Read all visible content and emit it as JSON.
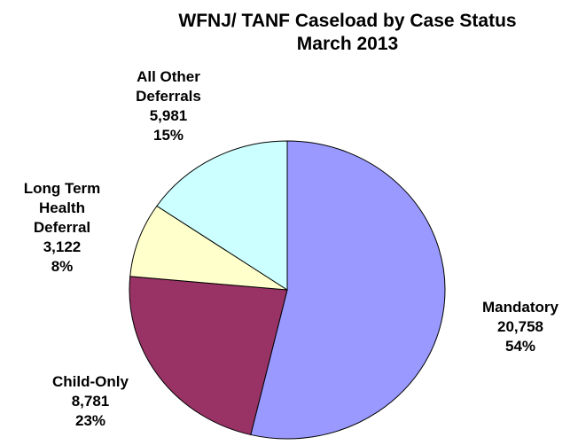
{
  "chart_data": {
    "type": "pie",
    "title": "WFNJ/ TANF Caseload by Case Status",
    "subtitle": "March 2013",
    "categories": [
      "Mandatory",
      "Child-Only",
      "Long Term Health Deferral",
      "All Other Deferrals"
    ],
    "values": [
      20758,
      8781,
      3122,
      5981
    ],
    "value_labels": [
      "20,758",
      "8,781",
      "3,122",
      "5,981"
    ],
    "percent_labels": [
      "54%",
      "23%",
      "8%",
      "15%"
    ],
    "colors": [
      "#9999ff",
      "#993366",
      "#ffffcc",
      "#ccffff"
    ]
  }
}
